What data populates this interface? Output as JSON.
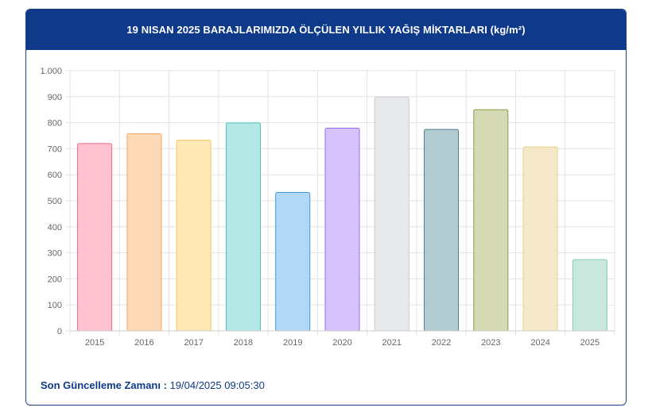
{
  "header": {
    "title": "19 NISAN 2025 BARAJLARIMIZDA ÖLÇÜLEN YILLIK YAĞIŞ MİKTARLARI (kg/m²)"
  },
  "footer": {
    "label": "Son Güncelleme Zamanı :",
    "value": "19/04/2025 09:05:30"
  },
  "chart_data": {
    "type": "bar",
    "categories": [
      "2015",
      "2016",
      "2017",
      "2018",
      "2019",
      "2020",
      "2021",
      "2022",
      "2023",
      "2024",
      "2025"
    ],
    "values": [
      720,
      758,
      733,
      799,
      532,
      779,
      899,
      774,
      850,
      707,
      274
    ],
    "ylim": [
      0,
      1000
    ],
    "yticks": [
      0,
      100,
      200,
      300,
      400,
      500,
      600,
      700,
      800,
      900,
      1000
    ],
    "ytick_labels": [
      "0",
      "100",
      "200",
      "300",
      "400",
      "500",
      "600",
      "700",
      "800",
      "900",
      "1.000"
    ],
    "grid": true,
    "colors": {
      "fill": [
        "#ffc2d1",
        "#fdd9b5",
        "#fde8b6",
        "#b4e7e6",
        "#b1d9f5",
        "#d6c3fd",
        "#e8e9eb",
        "#b2cdd1",
        "#d5dab4",
        "#f6e9c9",
        "#c9e7dd"
      ],
      "stroke": [
        "#ec6a8b",
        "#f5a560",
        "#f7c860",
        "#4fc3bf",
        "#3f9fe0",
        "#9c6af0",
        "#c9cbcf",
        "#4f7f86",
        "#8a9a42",
        "#e8cf88",
        "#86c9b2"
      ]
    }
  }
}
